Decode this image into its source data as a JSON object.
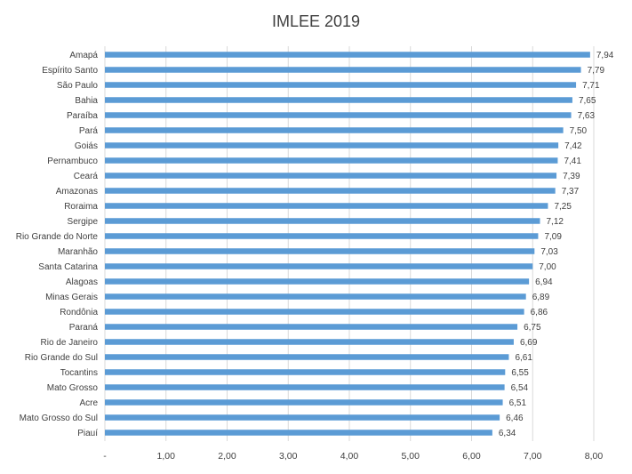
{
  "chart_data": {
    "type": "bar",
    "orientation": "horizontal",
    "title": "IMLEE 2019",
    "xlabel": "",
    "ylabel": "",
    "xlim": [
      0,
      8
    ],
    "xticks": [
      {
        "value": 0,
        "label": "-"
      },
      {
        "value": 1,
        "label": "1,00"
      },
      {
        "value": 2,
        "label": "2,00"
      },
      {
        "value": 3,
        "label": "3,00"
      },
      {
        "value": 4,
        "label": "4,00"
      },
      {
        "value": 5,
        "label": "5,00"
      },
      {
        "value": 6,
        "label": "6,00"
      },
      {
        "value": 7,
        "label": "7,00"
      },
      {
        "value": 8,
        "label": "8,00"
      }
    ],
    "grid": "vertical",
    "legend": "none",
    "colors": {
      "bar": "#5b9bd5",
      "grid": "#d9d9d9",
      "text": "#404040"
    },
    "categories": [
      "Amapá",
      "Espírito Santo",
      "São Paulo",
      "Bahia",
      "Paraíba",
      "Pará",
      "Goiás",
      "Pernambuco",
      "Ceará",
      "Amazonas",
      "Roraima",
      "Sergipe",
      "Rio Grande do Norte",
      "Maranhão",
      "Santa Catarina",
      "Alagoas",
      "Minas Gerais",
      "Rondônia",
      "Paraná",
      "Rio de Janeiro",
      "Rio Grande do Sul",
      "Tocantins",
      "Mato Grosso",
      "Acre",
      "Mato Grosso do Sul",
      "Piauí"
    ],
    "values": [
      7.94,
      7.79,
      7.71,
      7.65,
      7.63,
      7.5,
      7.42,
      7.41,
      7.39,
      7.37,
      7.25,
      7.12,
      7.09,
      7.03,
      7.0,
      6.94,
      6.89,
      6.86,
      6.75,
      6.69,
      6.61,
      6.55,
      6.54,
      6.51,
      6.46,
      6.34
    ],
    "value_labels": [
      "7,94",
      "7,79",
      "7,71",
      "7,65",
      "7,63",
      "7,50",
      "7,42",
      "7,41",
      "7,39",
      "7,37",
      "7,25",
      "7,12",
      "7,09",
      "7,03",
      "7,00",
      "6,94",
      "6,89",
      "6,86",
      "6,75",
      "6,69",
      "6,61",
      "6,55",
      "6,54",
      "6,51",
      "6,46",
      "6,34"
    ]
  }
}
